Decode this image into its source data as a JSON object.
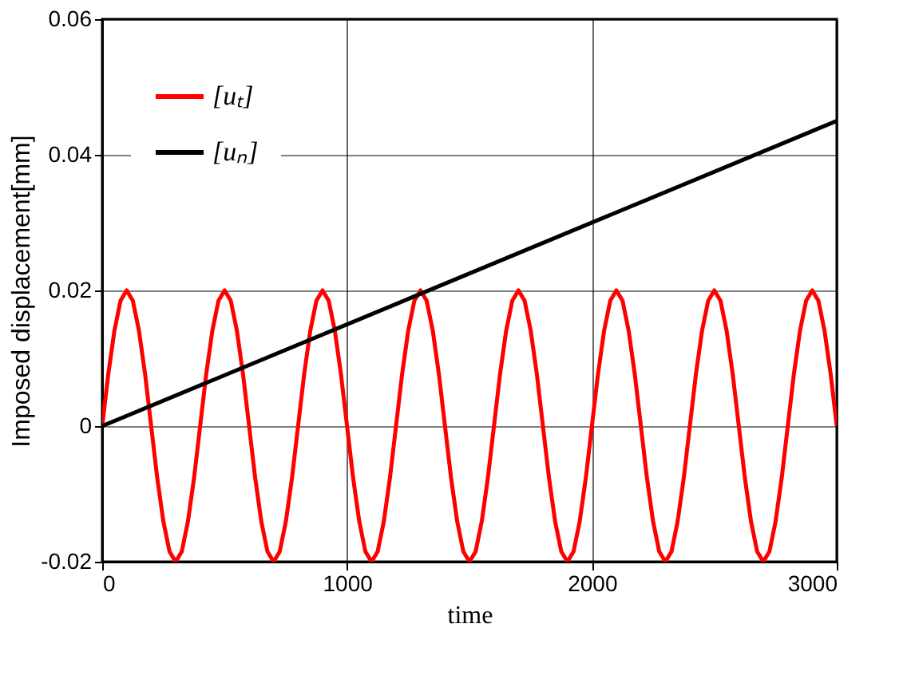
{
  "chart_data": {
    "type": "line",
    "xlabel": "time",
    "ylabel": "Imposed displacement[mm]",
    "xlim": [
      0,
      3000
    ],
    "ylim": [
      -0.02,
      0.06
    ],
    "xticks": [
      0,
      1000,
      2000,
      3000
    ],
    "yticks": [
      -0.02,
      0,
      0.02,
      0.04,
      0.06
    ],
    "grid": true,
    "legend": "top left",
    "line_style": "solid",
    "marker": "none",
    "series": [
      {
        "name": "[uₜ]",
        "color": "#ff0000",
        "x": [
          0,
          25,
          50,
          75,
          100,
          125,
          150,
          175,
          200,
          225,
          250,
          275,
          300,
          325,
          350,
          375,
          400,
          425,
          450,
          475,
          500,
          525,
          550,
          575,
          600,
          625,
          650,
          675,
          700,
          725,
          750,
          775,
          800,
          825,
          850,
          875,
          900,
          925,
          950,
          975,
          1000,
          1025,
          1050,
          1075,
          1100,
          1125,
          1150,
          1175,
          1200,
          1225,
          1250,
          1275,
          1300,
          1325,
          1350,
          1375,
          1400,
          1425,
          1450,
          1475,
          1500,
          1525,
          1550,
          1575,
          1600,
          1625,
          1650,
          1675,
          1700,
          1725,
          1750,
          1775,
          1800,
          1825,
          1850,
          1875,
          1900,
          1925,
          1950,
          1975,
          2000,
          2025,
          2050,
          2075,
          2100,
          2125,
          2150,
          2175,
          2200,
          2225,
          2250,
          2275,
          2300,
          2325,
          2350,
          2375,
          2400,
          2425,
          2450,
          2475,
          2500,
          2525,
          2550,
          2575,
          2600,
          2625,
          2650,
          2675,
          2700,
          2725,
          2750,
          2775,
          2800,
          2825,
          2850,
          2875,
          2900,
          2925,
          2950,
          2975,
          3000
        ],
        "values": [
          0,
          0.0077,
          0.0141,
          0.0185,
          0.02,
          0.0185,
          0.0141,
          0.0077,
          0,
          -0.0077,
          -0.0141,
          -0.0185,
          -0.02,
          -0.0185,
          -0.0141,
          -0.0077,
          0,
          0.0077,
          0.0141,
          0.0185,
          0.02,
          0.0185,
          0.0141,
          0.0077,
          0,
          -0.0077,
          -0.0141,
          -0.0185,
          -0.02,
          -0.0185,
          -0.0141,
          -0.0077,
          0,
          0.0077,
          0.0141,
          0.0185,
          0.02,
          0.0185,
          0.0141,
          0.0077,
          0,
          -0.0077,
          -0.0141,
          -0.0185,
          -0.02,
          -0.0185,
          -0.0141,
          -0.0077,
          0,
          0.0077,
          0.0141,
          0.0185,
          0.02,
          0.0185,
          0.0141,
          0.0077,
          0,
          -0.0077,
          -0.0141,
          -0.0185,
          -0.02,
          -0.0185,
          -0.0141,
          -0.0077,
          0,
          0.0077,
          0.0141,
          0.0185,
          0.02,
          0.0185,
          0.0141,
          0.0077,
          0,
          -0.0077,
          -0.0141,
          -0.0185,
          -0.02,
          -0.0185,
          -0.0141,
          -0.0077,
          0,
          0.0077,
          0.0141,
          0.0185,
          0.02,
          0.0185,
          0.0141,
          0.0077,
          0,
          -0.0077,
          -0.0141,
          -0.0185,
          -0.02,
          -0.0185,
          -0.0141,
          -0.0077,
          0,
          0.0077,
          0.0141,
          0.0185,
          0.02,
          0.0185,
          0.0141,
          0.0077,
          0,
          -0.0077,
          -0.0141,
          -0.0185,
          -0.02,
          -0.0185,
          -0.0141,
          -0.0077,
          0,
          0.0077,
          0.0141,
          0.0185,
          0.02,
          0.0185,
          0.0141,
          0.0077,
          0
        ]
      },
      {
        "name": "[uₙ]",
        "color": "#000000",
        "x": [
          0,
          3000
        ],
        "values": [
          0,
          0.045
        ]
      }
    ]
  }
}
